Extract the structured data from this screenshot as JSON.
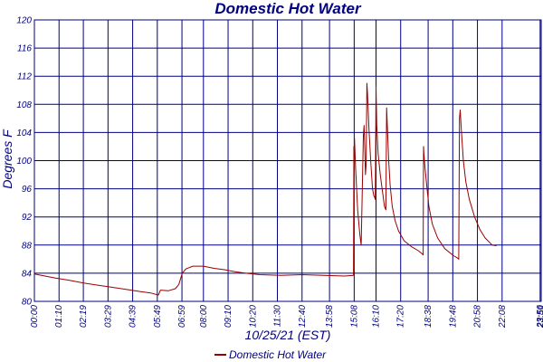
{
  "chart_data": {
    "type": "line",
    "title": "Domestic Hot Water",
    "xlabel": "10/25/21 (EST)",
    "ylabel": "Degrees F",
    "ylim": [
      80,
      120
    ],
    "yticks": [
      80,
      84,
      88,
      92,
      96,
      100,
      104,
      108,
      112,
      116,
      120
    ],
    "xlim": [
      0,
      1439
    ],
    "xticks": [
      {
        "t": 0,
        "label": "00:00"
      },
      {
        "t": 70,
        "label": "01:10"
      },
      {
        "t": 139,
        "label": "02:19"
      },
      {
        "t": 209,
        "label": "03:29"
      },
      {
        "t": 279,
        "label": "04:39"
      },
      {
        "t": 349,
        "label": "05:49"
      },
      {
        "t": 419,
        "label": "06:59"
      },
      {
        "t": 480,
        "label": "08:00"
      },
      {
        "t": 550,
        "label": "09:10"
      },
      {
        "t": 620,
        "label": "10:20"
      },
      {
        "t": 690,
        "label": "11:30"
      },
      {
        "t": 760,
        "label": "12:40"
      },
      {
        "t": 838,
        "label": "13:58"
      },
      {
        "t": 908,
        "label": "15:08"
      },
      {
        "t": 970,
        "label": "16:10"
      },
      {
        "t": 1040,
        "label": "17:20"
      },
      {
        "t": 1118,
        "label": "18:38"
      },
      {
        "t": 1188,
        "label": "19:48"
      },
      {
        "t": 1258,
        "label": "20:58"
      },
      {
        "t": 1328,
        "label": "22:08"
      },
      {
        "t": 1436,
        "label": "23:56"
      },
      {
        "t": 1439,
        "label": "23:59"
      }
    ],
    "grid": true,
    "legend_position": "bottom-center",
    "series": [
      {
        "name": "Domestic Hot Water",
        "color": "#990000",
        "points": [
          [
            0,
            83.9
          ],
          [
            30,
            83.6
          ],
          [
            60,
            83.3
          ],
          [
            100,
            83.0
          ],
          [
            140,
            82.6
          ],
          [
            180,
            82.3
          ],
          [
            220,
            82.0
          ],
          [
            260,
            81.7
          ],
          [
            300,
            81.4
          ],
          [
            330,
            81.2
          ],
          [
            352,
            80.9
          ],
          [
            358,
            81.6
          ],
          [
            380,
            81.5
          ],
          [
            400,
            81.8
          ],
          [
            410,
            82.4
          ],
          [
            420,
            84.0
          ],
          [
            430,
            84.6
          ],
          [
            450,
            85.0
          ],
          [
            480,
            85.0
          ],
          [
            510,
            84.7
          ],
          [
            540,
            84.5
          ],
          [
            570,
            84.2
          ],
          [
            600,
            84.0
          ],
          [
            640,
            83.8
          ],
          [
            700,
            83.7
          ],
          [
            760,
            83.8
          ],
          [
            820,
            83.7
          ],
          [
            880,
            83.6
          ],
          [
            906,
            83.7
          ],
          [
            907,
            102.0
          ],
          [
            908,
            100.5
          ],
          [
            909,
            103.2
          ],
          [
            912,
            99.0
          ],
          [
            918,
            93.0
          ],
          [
            924,
            89.5
          ],
          [
            928,
            88.0
          ],
          [
            934,
            103.5
          ],
          [
            936,
            105.0
          ],
          [
            938,
            102.0
          ],
          [
            940,
            98.0
          ],
          [
            942,
            99.5
          ],
          [
            944,
            111.0
          ],
          [
            946,
            109.5
          ],
          [
            950,
            104.5
          ],
          [
            955,
            100.0
          ],
          [
            960,
            96.0
          ],
          [
            964,
            95.0
          ],
          [
            966,
            94.8
          ],
          [
            968,
            94.5
          ],
          [
            970,
            110.5
          ],
          [
            972,
            105.0
          ],
          [
            976,
            101.0
          ],
          [
            982,
            98.0
          ],
          [
            986,
            96.5
          ],
          [
            990,
            95.0
          ],
          [
            994,
            93.5
          ],
          [
            998,
            93.0
          ],
          [
            1000,
            107.5
          ],
          [
            1003,
            104.0
          ],
          [
            1006,
            100.0
          ],
          [
            1010,
            96.5
          ],
          [
            1016,
            93.5
          ],
          [
            1024,
            91.5
          ],
          [
            1034,
            90.0
          ],
          [
            1050,
            88.6
          ],
          [
            1070,
            87.8
          ],
          [
            1090,
            87.2
          ],
          [
            1100,
            86.8
          ],
          [
            1104,
            86.6
          ],
          [
            1105,
            102.0
          ],
          [
            1106,
            101.0
          ],
          [
            1109,
            99.0
          ],
          [
            1114,
            96.5
          ],
          [
            1120,
            93.5
          ],
          [
            1130,
            91.0
          ],
          [
            1145,
            89.0
          ],
          [
            1165,
            87.5
          ],
          [
            1190,
            86.5
          ],
          [
            1200,
            86.2
          ],
          [
            1205,
            86.0
          ],
          [
            1207,
            106.0
          ],
          [
            1209,
            107.2
          ],
          [
            1212,
            104.5
          ],
          [
            1218,
            100.0
          ],
          [
            1225,
            97.0
          ],
          [
            1235,
            94.5
          ],
          [
            1250,
            92.0
          ],
          [
            1265,
            90.2
          ],
          [
            1280,
            89.0
          ],
          [
            1300,
            88.0
          ],
          [
            1312,
            87.9
          ]
        ]
      }
    ]
  }
}
